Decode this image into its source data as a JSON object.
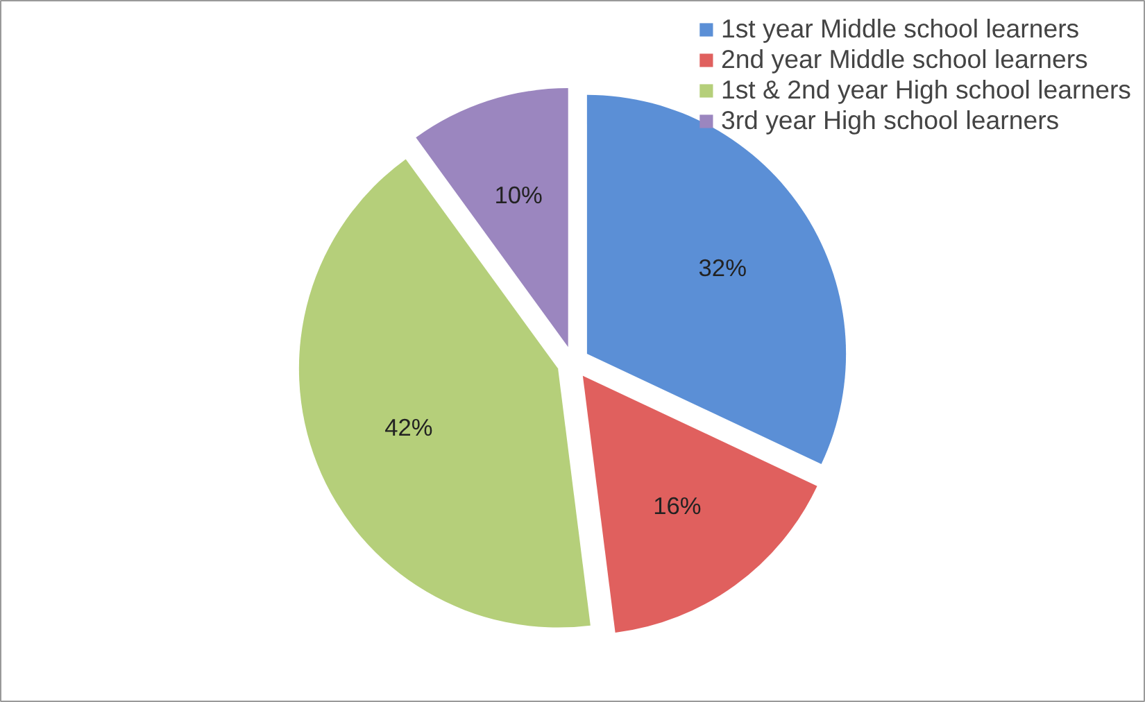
{
  "chart_data": {
    "type": "pie",
    "categories": [
      "1st year Middle school learners",
      "2nd year Middle school learners",
      "1st & 2nd year High school learners",
      "3rd year High school learners"
    ],
    "values": [
      32,
      16,
      42,
      10
    ],
    "colors": [
      "#5b8fd6",
      "#e0605e",
      "#b5cf7a",
      "#9b86bf"
    ],
    "value_labels": [
      "32%",
      "16%",
      "42%",
      "10%"
    ],
    "legend": "top right"
  }
}
